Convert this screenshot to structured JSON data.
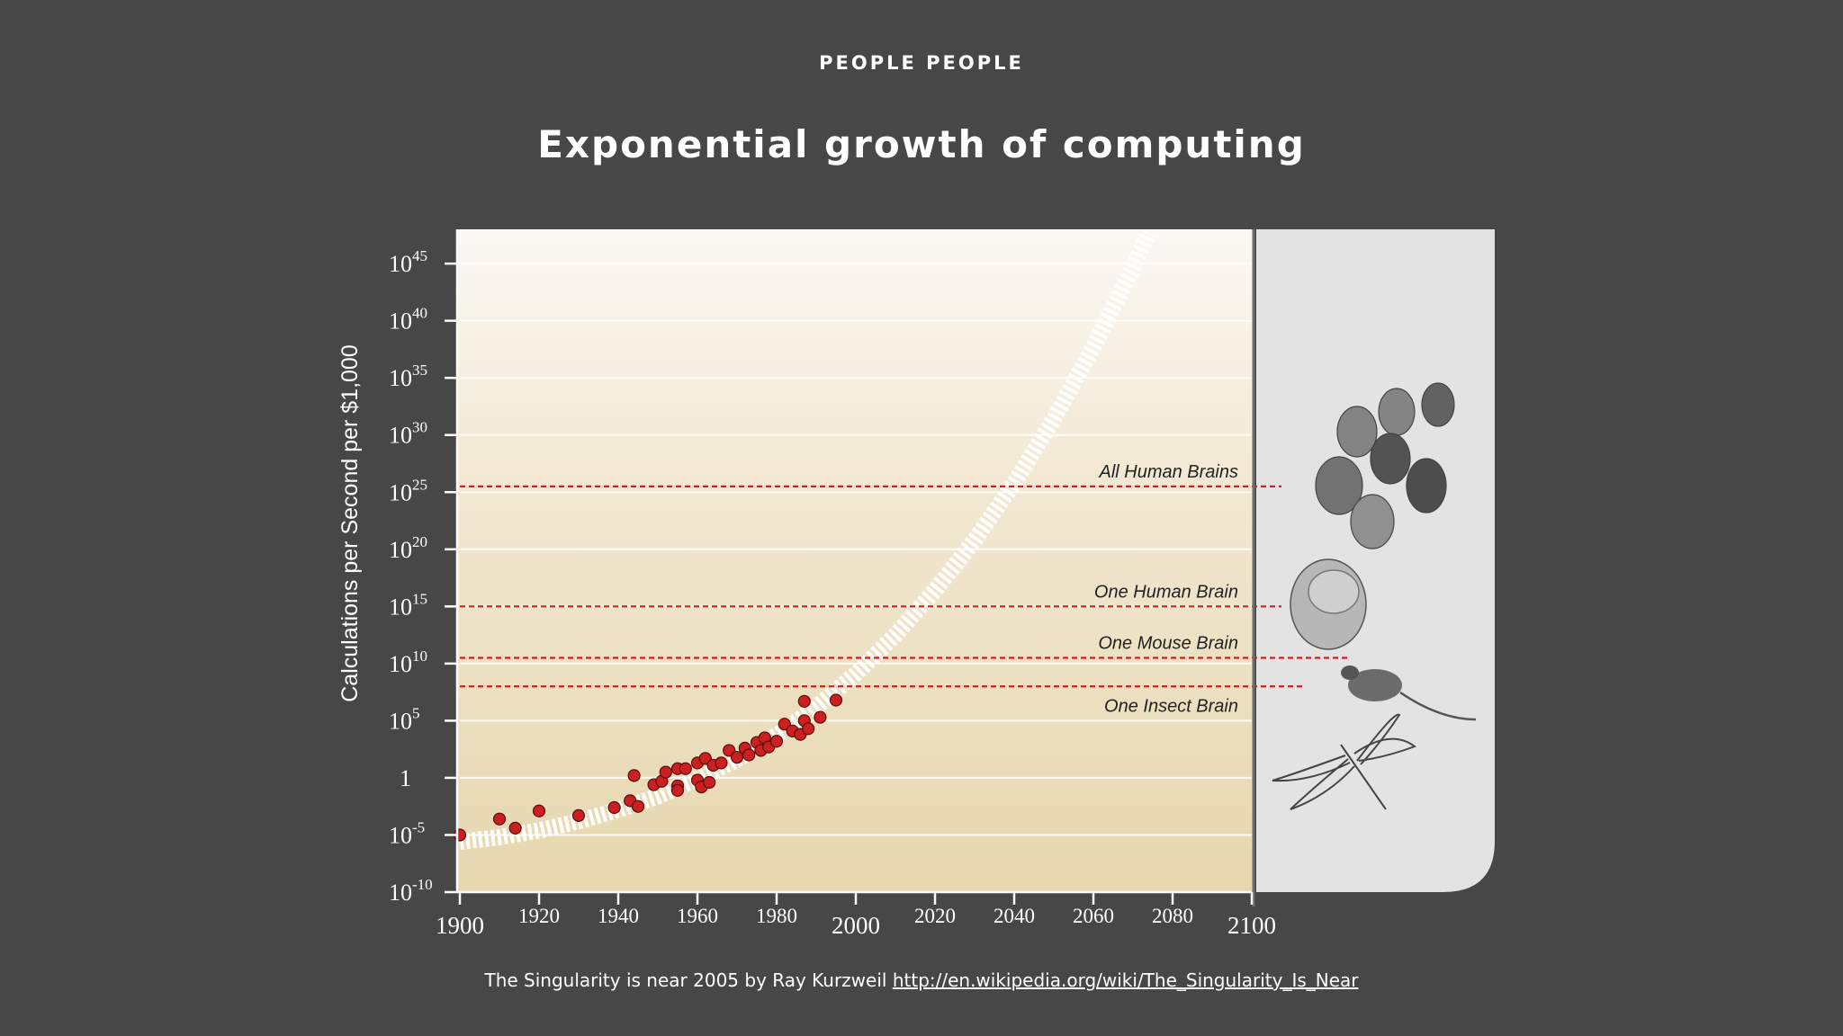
{
  "header": {
    "kicker": "PEOPLE PEOPLE",
    "title": "Exponential growth of computing"
  },
  "caption": {
    "text": "The Singularity is near 2005 by Ray Kurzweil",
    "link": "http://en.wikipedia.org/wiki/The_Singularity_Is_Near"
  },
  "colors": {
    "background": "#474747",
    "plot_top": "#fbf8f4",
    "plot_bottom": "#e6d7ae",
    "marker": "#cc1f1f",
    "threshold_line": "#d01f1f",
    "side_panel": "#e4e3e4"
  },
  "chart_data": {
    "type": "scatter",
    "ylabel": "Calculations per Second per $1,000",
    "xlim": [
      1900,
      2100
    ],
    "y_scale": "log10",
    "ylim_exponent": [
      -10,
      48
    ],
    "x_ticks": [
      {
        "value": 1900,
        "label": "1900",
        "major": true
      },
      {
        "value": 1920,
        "label": "1920",
        "major": false
      },
      {
        "value": 1940,
        "label": "1940",
        "major": false
      },
      {
        "value": 1960,
        "label": "1960",
        "major": false
      },
      {
        "value": 1980,
        "label": "1980",
        "major": false
      },
      {
        "value": 2000,
        "label": "2000",
        "major": true
      },
      {
        "value": 2020,
        "label": "2020",
        "major": false
      },
      {
        "value": 2040,
        "label": "2040",
        "major": false
      },
      {
        "value": 2060,
        "label": "2060",
        "major": false
      },
      {
        "value": 2080,
        "label": "2080",
        "major": false
      },
      {
        "value": 2100,
        "label": "2100",
        "major": true
      }
    ],
    "y_ticks": [
      {
        "exp": 45,
        "base": "10",
        "sup": "45"
      },
      {
        "exp": 40,
        "base": "10",
        "sup": "40"
      },
      {
        "exp": 35,
        "base": "10",
        "sup": "35"
      },
      {
        "exp": 30,
        "base": "10",
        "sup": "30"
      },
      {
        "exp": 25,
        "base": "10",
        "sup": "25"
      },
      {
        "exp": 20,
        "base": "10",
        "sup": "20"
      },
      {
        "exp": 15,
        "base": "10",
        "sup": "15"
      },
      {
        "exp": 10,
        "base": "10",
        "sup": "10"
      },
      {
        "exp": 5,
        "base": "10",
        "sup": "5"
      },
      {
        "exp": 0,
        "base": "1",
        "sup": ""
      },
      {
        "exp": -5,
        "base": "10",
        "sup": "-5"
      },
      {
        "exp": -10,
        "base": "10",
        "sup": "-10"
      }
    ],
    "thresholds": [
      {
        "label": "All Human Brains",
        "exp": 25.5
      },
      {
        "label": "One Human Brain",
        "exp": 15
      },
      {
        "label": "One Mouse Brain",
        "exp": 10.5
      },
      {
        "label": "One Insect Brain",
        "exp": 8
      }
    ],
    "trend": {
      "label": "",
      "points": [
        [
          1900,
          -5.6
        ],
        [
          1910,
          -5.2
        ],
        [
          1920,
          -4.6
        ],
        [
          1930,
          -3.8
        ],
        [
          1940,
          -2.8
        ],
        [
          1950,
          -1.6
        ],
        [
          1960,
          -0.1
        ],
        [
          1970,
          1.6
        ],
        [
          1980,
          3.7
        ],
        [
          1990,
          6.2
        ],
        [
          2000,
          9.1
        ],
        [
          2010,
          12.5
        ],
        [
          2020,
          16.4
        ],
        [
          2030,
          20.8
        ],
        [
          2040,
          25.8
        ],
        [
          2050,
          31.4
        ],
        [
          2060,
          37.7
        ],
        [
          2070,
          44.6
        ],
        [
          2074,
          47.7
        ]
      ]
    },
    "points": [
      [
        1900,
        -5
      ],
      [
        1910,
        -3.6
      ],
      [
        1914,
        -4.4
      ],
      [
        1920,
        -2.9
      ],
      [
        1930,
        -3.3
      ],
      [
        1939,
        -2.6
      ],
      [
        1943,
        -2.0
      ],
      [
        1944,
        0.2
      ],
      [
        1945,
        -2.5
      ],
      [
        1949,
        -0.6
      ],
      [
        1951,
        -0.3
      ],
      [
        1952,
        0.5
      ],
      [
        1955,
        -0.7
      ],
      [
        1955,
        0.8
      ],
      [
        1955,
        -1.1
      ],
      [
        1957,
        0.8
      ],
      [
        1960,
        -0.2
      ],
      [
        1960,
        1.3
      ],
      [
        1961,
        -0.8
      ],
      [
        1962,
        1.7
      ],
      [
        1963,
        -0.4
      ],
      [
        1964,
        1.1
      ],
      [
        1966,
        1.3
      ],
      [
        1968,
        2.4
      ],
      [
        1970,
        1.8
      ],
      [
        1972,
        2.6
      ],
      [
        1973,
        2.0
      ],
      [
        1975,
        3.1
      ],
      [
        1976,
        2.4
      ],
      [
        1977,
        3.5
      ],
      [
        1978,
        2.7
      ],
      [
        1980,
        3.2
      ],
      [
        1982,
        4.7
      ],
      [
        1984,
        4.1
      ],
      [
        1986,
        3.8
      ],
      [
        1987,
        5.0
      ],
      [
        1987,
        6.7
      ],
      [
        1988,
        4.3
      ],
      [
        1991,
        5.3
      ],
      [
        1995,
        6.8
      ]
    ],
    "grid": true
  }
}
